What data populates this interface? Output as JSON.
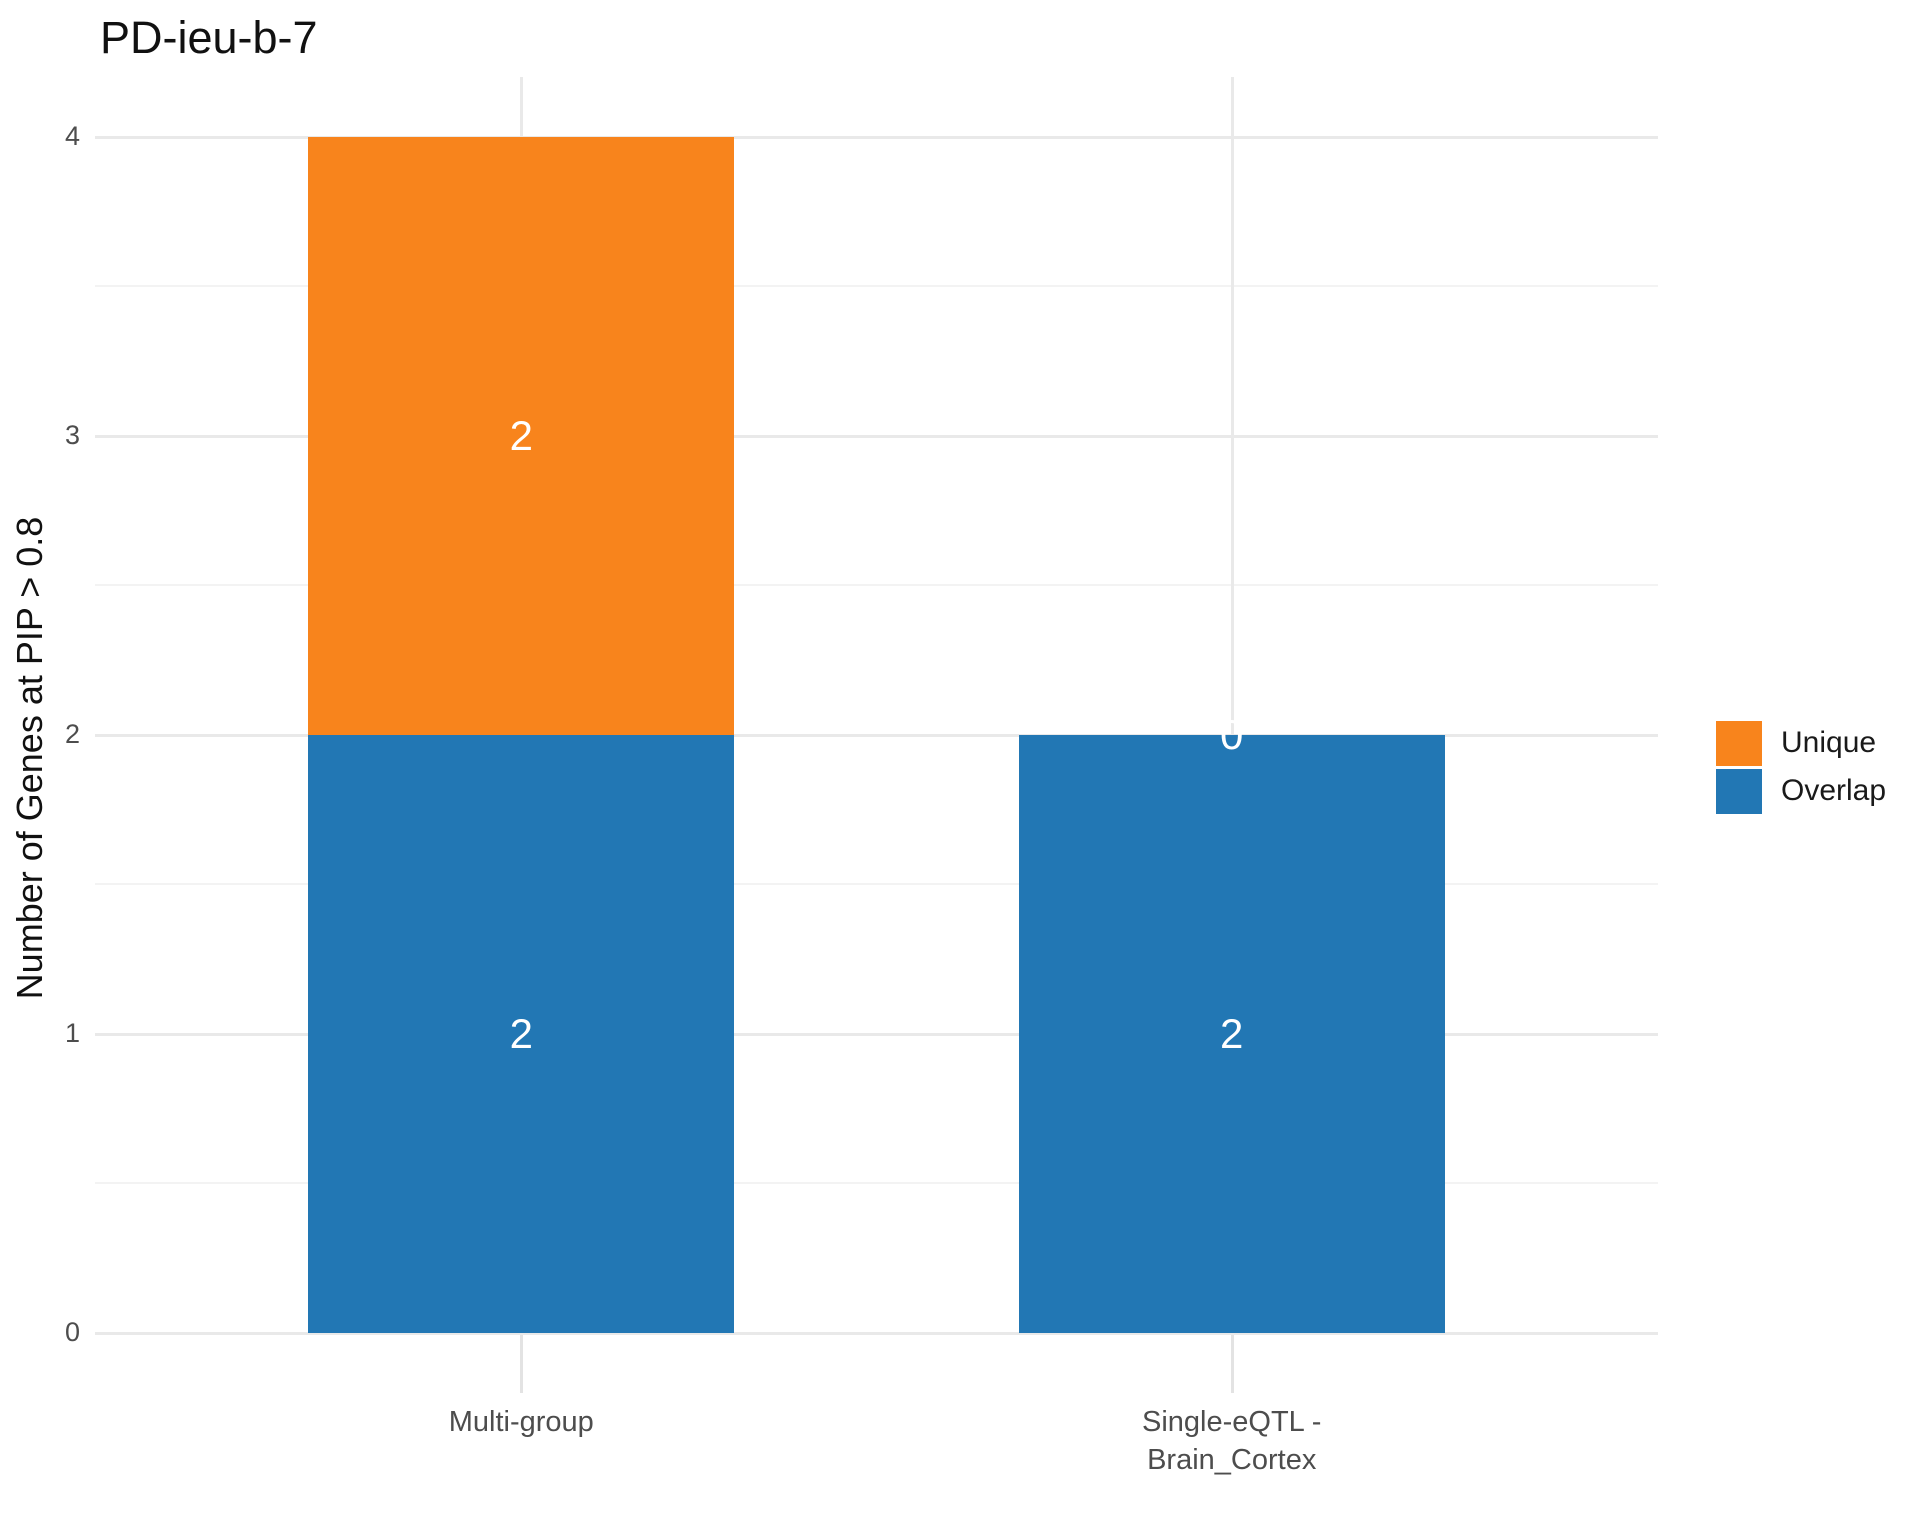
{
  "title": "PD-ieu-b-7",
  "y_axis": {
    "label": "Number of Genes at PIP > 0.8",
    "tick_labels": [
      "0",
      "1",
      "2",
      "3",
      "4"
    ]
  },
  "x_axis": {
    "category_display_lines": [
      [
        "Multi-group"
      ],
      [
        "Single-eQTL -",
        "Brain_Cortex"
      ]
    ]
  },
  "legend": {
    "items": [
      {
        "label": "Unique",
        "color": "#f8841c"
      },
      {
        "label": "Overlap",
        "color": "#2277b4"
      }
    ]
  },
  "colors": {
    "unique": "#f8841c",
    "overlap": "#2277b4",
    "grid_major": "#e9e9e9",
    "grid_minor": "#f3f3f3",
    "axis_text": "#4d4d4d",
    "bar_label_text": "#ffffff",
    "background": "#ffffff"
  },
  "chart_data": {
    "type": "bar",
    "stacked": true,
    "title": "PD-ieu-b-7",
    "xlabel": "",
    "ylabel": "Number of Genes at PIP > 0.8",
    "categories": [
      "Multi-group",
      "Single-eQTL - Brain_Cortex"
    ],
    "series": [
      {
        "name": "Overlap",
        "color": "#2277b4",
        "values": [
          2,
          2
        ]
      },
      {
        "name": "Unique",
        "color": "#f8841c",
        "values": [
          2,
          0
        ]
      }
    ],
    "bar_value_labels": {
      "Overlap": [
        "2",
        "2"
      ],
      "Unique": [
        "2",
        "0"
      ]
    },
    "totals": [
      4,
      2
    ],
    "ylim": [
      0,
      4.2
    ],
    "yticks": [
      0,
      1,
      2,
      3,
      4
    ],
    "yticks_minor": [
      0.5,
      1.5,
      2.5,
      3.5
    ],
    "grid": true,
    "legend_position": "right",
    "legend_order": [
      "Unique",
      "Overlap"
    ]
  }
}
